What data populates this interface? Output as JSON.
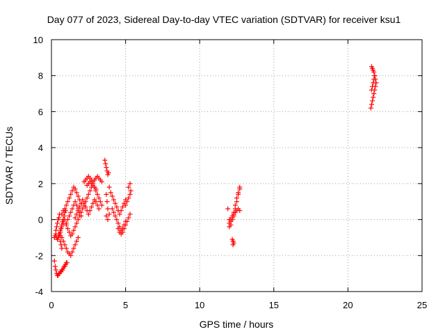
{
  "chart_data": {
    "type": "scatter",
    "title": "Day 077 of 2023, Sidereal Day-to-day VTEC variation (SDTVAR) for receiver ksu1",
    "xlabel": "GPS time / hours",
    "ylabel": "SDTVAR / TECUs",
    "xlim": [
      0,
      25
    ],
    "ylim": [
      -4,
      10
    ],
    "xticks": [
      "0",
      "5",
      "10",
      "15",
      "20",
      "25"
    ],
    "yticks": [
      "-4",
      "-2",
      "0",
      "2",
      "4",
      "6",
      "8",
      "10"
    ],
    "grid": true,
    "marker": "plus",
    "color": "#ff0000",
    "series": [
      {
        "name": "SDTVAR",
        "x": [
          0.2,
          0.25,
          0.3,
          0.35,
          0.4,
          0.45,
          0.5,
          0.55,
          0.6,
          0.65,
          0.7,
          0.75,
          0.8,
          0.85,
          0.9,
          0.95,
          1.0,
          1.05,
          0.2,
          0.25,
          0.3,
          0.35,
          0.4,
          0.45,
          0.5,
          0.55,
          0.6,
          0.65,
          0.7,
          0.75,
          0.8,
          0.85,
          0.9,
          0.95,
          0.3,
          0.35,
          0.4,
          0.45,
          0.5,
          0.55,
          0.6,
          0.65,
          0.7,
          0.5,
          0.6,
          0.7,
          0.8,
          0.9,
          1.0,
          1.1,
          1.2,
          1.3,
          1.4,
          1.5,
          1.6,
          1.7,
          1.8,
          0.6,
          0.7,
          0.8,
          0.9,
          1.0,
          1.1,
          1.2,
          1.3,
          1.4,
          1.5,
          1.6,
          1.7,
          1.8,
          1.9,
          0.7,
          0.8,
          0.9,
          1.0,
          1.1,
          1.2,
          1.3,
          1.4,
          1.5,
          1.6,
          1.7,
          1.8,
          1.9,
          2.0,
          1.0,
          1.1,
          1.2,
          1.3,
          1.4,
          1.5,
          1.6,
          1.7,
          1.8,
          1.9,
          2.0,
          1.6,
          1.7,
          1.8,
          1.9,
          2.0,
          2.1,
          2.2,
          2.3,
          2.4,
          2.5,
          2.6,
          2.7,
          2.8,
          2.9,
          3.0,
          3.1,
          3.2,
          2.2,
          2.3,
          2.4,
          2.5,
          2.6,
          2.7,
          2.8,
          2.9,
          3.0,
          3.1,
          3.2,
          3.3,
          3.4,
          2.0,
          2.1,
          2.2,
          2.3,
          2.4,
          2.5,
          2.6,
          2.7,
          2.8,
          2.9,
          3.0,
          3.1,
          3.2,
          3.3,
          3.4,
          2.4,
          2.5,
          2.6,
          2.7,
          2.8,
          2.9,
          3.0,
          3.6,
          3.65,
          3.7,
          3.75,
          3.8,
          3.85,
          3.9,
          3.7,
          3.75,
          3.8,
          3.7,
          3.8,
          3.9,
          4.0,
          4.1,
          4.2,
          4.3,
          4.4,
          4.5,
          4.6,
          4.7,
          4.8,
          4.9,
          5.0,
          4.1,
          4.2,
          4.3,
          4.4,
          4.5,
          4.6,
          4.7,
          4.8,
          4.9,
          5.0,
          4.5,
          4.6,
          4.7,
          4.8,
          4.9,
          5.0,
          5.1,
          5.2,
          5.3,
          5.0,
          5.1,
          5.2,
          5.3,
          5.35,
          5.2,
          5.3,
          11.9,
          12.0,
          12.0,
          12.1,
          12.1,
          12.2,
          12.2,
          12.3,
          12.3,
          12.4,
          12.4,
          12.5,
          12.5,
          12.6,
          12.6,
          12.7,
          12.7,
          12.0,
          12.1,
          12.2,
          12.3,
          12.4,
          12.5,
          12.6,
          12.7,
          12.2,
          12.25,
          12.3,
          12.25,
          21.6,
          21.65,
          21.7,
          21.75,
          21.8,
          21.85,
          21.9,
          21.55,
          21.6,
          21.65,
          21.7,
          21.75,
          21.8,
          21.85,
          21.9,
          21.6,
          21.65,
          21.7,
          21.75,
          21.8
        ],
        "y": [
          -2.3,
          -2.6,
          -2.8,
          -3.0,
          -3.1,
          -3.1,
          -3.0,
          -3.0,
          -2.9,
          -2.9,
          -2.8,
          -2.8,
          -2.7,
          -2.6,
          -2.6,
          -2.5,
          -2.4,
          -2.4,
          -1.0,
          -0.9,
          -0.8,
          -1.0,
          -1.1,
          -1.0,
          -0.9,
          -0.8,
          -0.7,
          -0.5,
          -0.3,
          -0.1,
          0.0,
          0.2,
          0.4,
          0.5,
          -0.6,
          -0.4,
          -0.2,
          0.0,
          0.1,
          0.3,
          -1.2,
          -1.4,
          -1.6,
          -0.8,
          -0.9,
          -1.0,
          -1.2,
          -1.4,
          -1.6,
          -1.8,
          -1.9,
          -2.0,
          -1.8,
          -1.6,
          -1.4,
          -1.2,
          -1.0,
          -0.6,
          -0.4,
          -0.2,
          0.0,
          -0.3,
          -0.5,
          -0.7,
          -0.9,
          -0.8,
          -0.6,
          -0.4,
          -0.2,
          0.0,
          0.2,
          0.3,
          0.5,
          0.6,
          0.8,
          1.0,
          1.2,
          1.4,
          1.6,
          1.8,
          1.7,
          1.5,
          1.3,
          1.1,
          0.9,
          -0.2,
          0.0,
          0.2,
          0.4,
          0.6,
          0.8,
          1.0,
          0.8,
          0.6,
          0.4,
          0.2,
          0.1,
          0.3,
          0.5,
          0.7,
          0.9,
          1.1,
          0.9,
          0.7,
          0.5,
          0.3,
          0.5,
          0.7,
          0.9,
          1.1,
          1.0,
          0.8,
          0.6,
          2.1,
          2.2,
          2.3,
          2.4,
          2.3,
          2.2,
          2.1,
          2.2,
          2.3,
          2.4,
          2.3,
          2.2,
          2.1,
          0.4,
          0.6,
          0.8,
          1.0,
          1.2,
          1.4,
          1.6,
          1.8,
          2.0,
          1.8,
          1.6,
          1.4,
          1.2,
          1.0,
          0.8,
          1.9,
          2.0,
          2.1,
          2.0,
          1.9,
          1.8,
          1.7,
          3.3,
          3.1,
          2.9,
          2.7,
          2.5,
          2.6,
          1.8,
          1.4,
          1.0,
          0.6,
          0.2,
          0.0,
          0.3,
          1.5,
          1.3,
          1.1,
          0.9,
          0.7,
          0.5,
          0.3,
          0.5,
          0.7,
          0.9,
          1.1,
          0.6,
          0.4,
          0.2,
          0.0,
          -0.2,
          -0.4,
          -0.6,
          -0.5,
          -0.3,
          -0.1,
          -0.5,
          -0.7,
          -0.8,
          -0.7,
          -0.5,
          -0.3,
          -0.1,
          0.1,
          0.3,
          0.8,
          1.0,
          1.2,
          1.4,
          1.6,
          1.8,
          2.0,
          0.6,
          -0.4,
          0.0,
          -0.3,
          -0.1,
          0.0,
          0.1,
          0.2,
          0.4,
          0.6,
          0.8,
          1.0,
          1.2,
          1.4,
          1.5,
          1.7,
          1.8,
          -0.2,
          0.0,
          0.2,
          0.3,
          0.4,
          0.5,
          0.6,
          0.5,
          -1.1,
          -1.2,
          -1.3,
          -1.4,
          8.5,
          8.4,
          8.3,
          8.2,
          8.0,
          7.8,
          7.6,
          6.2,
          6.4,
          6.6,
          6.8,
          7.0,
          7.2,
          7.4,
          7.6,
          7.2,
          7.4,
          7.6,
          7.8,
          8.0
        ]
      }
    ]
  }
}
